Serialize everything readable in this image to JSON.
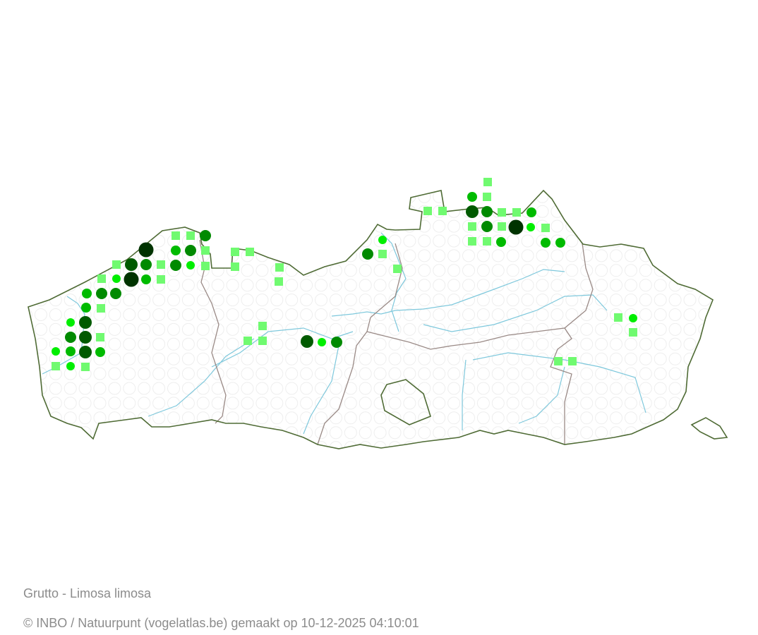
{
  "map": {
    "species_title": "Grutto - Limosa limosa",
    "credit": "© INBO / Natuurpunt (vogelatlas.be) gemaakt op 10-12-2025 04:10:01",
    "colors": {
      "border": "#4f6b35",
      "province_border": "#9a8a86",
      "river": "#7ec8dc",
      "empty_cell": "#eeeeee",
      "class5": "#003300",
      "class4": "#005a00",
      "class3": "#008a00",
      "class2": "#00bb00",
      "class1": "#00ee00",
      "square": "#70fa70"
    }
  }
}
